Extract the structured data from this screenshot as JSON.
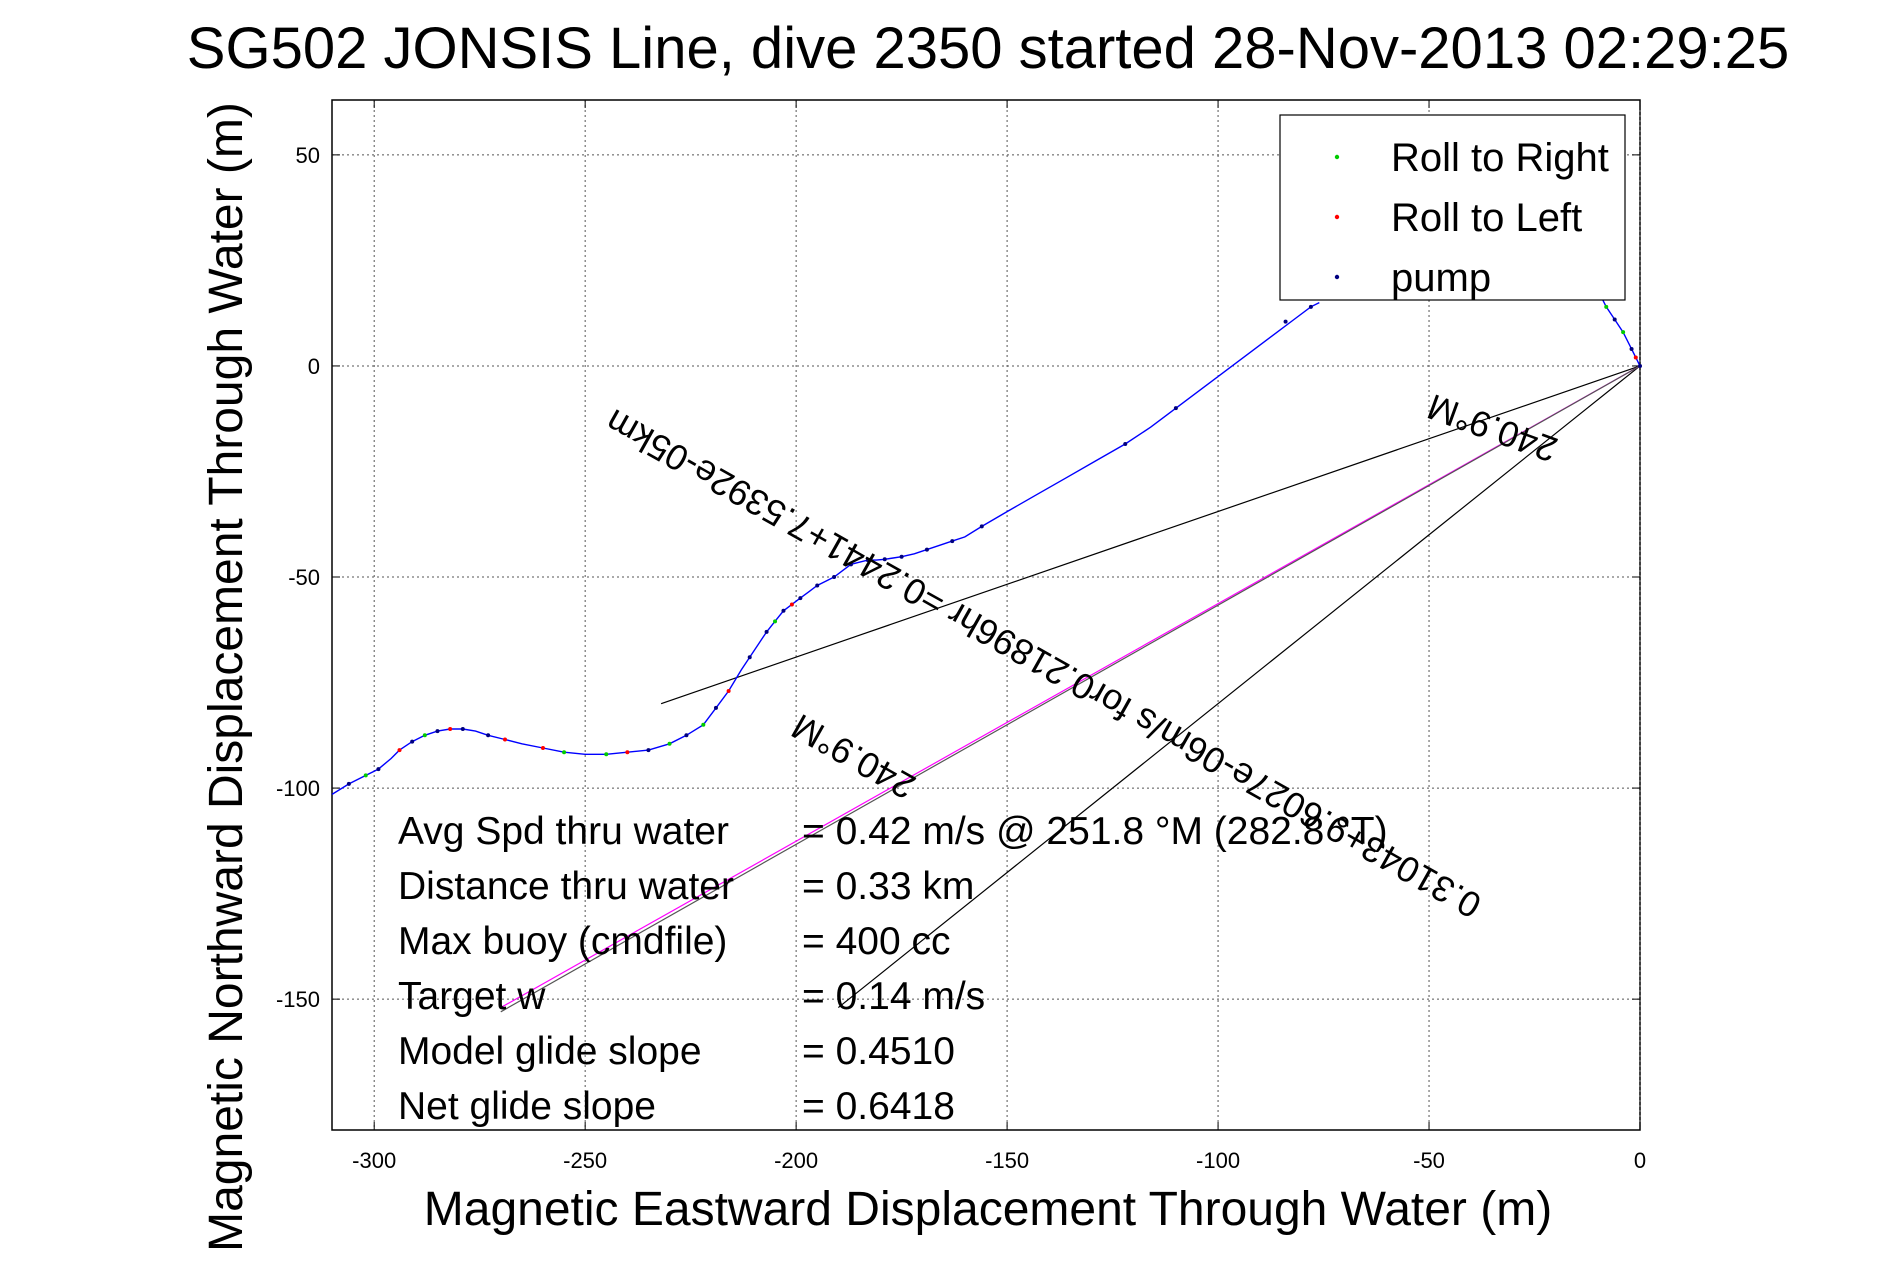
{
  "chart_data": {
    "type": "line",
    "title": "SG502 JONSIS Line, dive 2350 started 28-Nov-2013 02:29:25",
    "xlabel": "Magnetic Eastward Displacement Through Water (m)",
    "ylabel": "Magnetic Northward Displacement Through Water (m)",
    "xlim": [
      -310,
      0
    ],
    "ylim": [
      -181,
      63
    ],
    "xticks": [
      -300,
      -250,
      -200,
      -150,
      -100,
      -50,
      0
    ],
    "yticks": [
      50,
      0,
      -50,
      -100,
      -150
    ],
    "xtick_labels": [
      "-300",
      "-250",
      "-200",
      "-150",
      "-100",
      "-50",
      "0"
    ],
    "ytick_labels": [
      "50",
      "0",
      "-50",
      "-100",
      "-150"
    ],
    "grid": true,
    "legend_position": "top-right",
    "legend": [
      {
        "label": "Roll to Right",
        "color": "#00cc00"
      },
      {
        "label": "Roll to Left",
        "color": "#ff0000"
      },
      {
        "label": "pump",
        "color": "#000080"
      }
    ],
    "series": [
      {
        "color": "#0000ff",
        "x": [
          -310,
          -306,
          -302,
          -299,
          -296,
          -294,
          -291,
          -288,
          -285,
          -282,
          -279,
          -276,
          -273,
          -269,
          -265,
          -260,
          -255,
          -250,
          -245,
          -240,
          -235,
          -230,
          -226,
          -222,
          -219,
          -216,
          -213,
          -211,
          -209,
          -207,
          -205,
          -203,
          -201,
          -199,
          -197,
          -195,
          -193,
          -191,
          -189,
          -187,
          -185,
          -183,
          -181,
          -179,
          -177,
          -175,
          -172,
          -169,
          -166,
          -163,
          -160,
          -156,
          -150,
          -143,
          -136,
          -129,
          -122,
          -116,
          -110,
          -104,
          -98,
          -92,
          -86,
          -82,
          -78,
          -76
        ],
        "y": [
          -101.5,
          -99,
          -97,
          -95.5,
          -93,
          -91,
          -89,
          -87.5,
          -86.5,
          -86,
          -86,
          -86.5,
          -87.5,
          -88.5,
          -89.5,
          -90.5,
          -91.5,
          -92,
          -92,
          -91.5,
          -91,
          -89.5,
          -87.5,
          -85,
          -81,
          -77,
          -72,
          -69,
          -66,
          -63,
          -60.5,
          -58,
          -56.5,
          -55,
          -53.5,
          -52,
          -51,
          -50,
          -48.5,
          -47,
          -46.5,
          -46,
          -46,
          -45.8,
          -45.5,
          -45.2,
          -44.5,
          -43.5,
          -42.5,
          -41.5,
          -40.5,
          -38,
          -34.5,
          -30.5,
          -26.5,
          -22.5,
          -18.5,
          -14.5,
          -10,
          -5.5,
          -1,
          3.5,
          8,
          11,
          14,
          15
        ]
      },
      {
        "color": "#0000ff",
        "x": [
          -10,
          -8,
          -6,
          -4,
          -2,
          -1,
          0
        ],
        "y": [
          18,
          14,
          11,
          8,
          4,
          2,
          0
        ]
      }
    ],
    "pump_points": [
      [
        -306,
        -99
      ],
      [
        -299,
        -95.5
      ],
      [
        -291,
        -89
      ],
      [
        -285,
        -86.5
      ],
      [
        -279,
        -86
      ],
      [
        -273,
        -87.5
      ],
      [
        -235,
        -91
      ],
      [
        -226,
        -87.5
      ],
      [
        -219,
        -81
      ],
      [
        -211,
        -69
      ],
      [
        -207,
        -63
      ],
      [
        -203,
        -58
      ],
      [
        -199,
        -55
      ],
      [
        -195,
        -52
      ],
      [
        -191,
        -50
      ],
      [
        -187,
        -47
      ],
      [
        -183,
        -46
      ],
      [
        -179,
        -45.8
      ],
      [
        -175,
        -45.2
      ],
      [
        -169,
        -43.5
      ],
      [
        -163,
        -41.5
      ],
      [
        -156,
        -38
      ],
      [
        -122,
        -18.5
      ],
      [
        -110,
        -10
      ],
      [
        -84,
        10.5
      ],
      [
        -78,
        14
      ],
      [
        -6,
        11
      ],
      [
        -2,
        4
      ],
      [
        0,
        0
      ]
    ],
    "right_roll_points": [
      [
        -302,
        -97
      ],
      [
        -288,
        -87.5
      ],
      [
        -255,
        -91.5
      ],
      [
        -245,
        -92
      ],
      [
        -230,
        -89.5
      ],
      [
        -222,
        -85
      ],
      [
        -205,
        -60.5
      ],
      [
        -8,
        14
      ],
      [
        -4,
        8
      ]
    ],
    "left_roll_points": [
      [
        -294,
        -91
      ],
      [
        -282,
        -86
      ],
      [
        -269,
        -88.5
      ],
      [
        -260,
        -90.5
      ],
      [
        -240,
        -91.5
      ],
      [
        -216,
        -77
      ],
      [
        -201,
        -56.5
      ],
      [
        -1,
        2
      ]
    ],
    "reference_lines": [
      {
        "color": "#000000",
        "x": [
          0,
          -232
        ],
        "y": [
          0,
          -80
        ]
      },
      {
        "color": "#000000",
        "x": [
          0,
          -190
        ],
        "y": [
          0,
          -152
        ]
      },
      {
        "color": "#ff00ff",
        "x": [
          0,
          -270
        ],
        "y": [
          0,
          -152
        ]
      },
      {
        "color": "#555555",
        "x": [
          0,
          -270
        ],
        "y": [
          0,
          -153
        ]
      }
    ],
    "line_labels": [
      {
        "text": "240.9°M",
        "x": -34,
        "y": -12,
        "angle": 200
      },
      {
        "text": "0.31043+9.6027e-06m/s for0.21896hr =0.2441+7.5392e-05km",
        "x": -140,
        "y": -68,
        "angle": 209.4
      },
      {
        "text": "240.9°M",
        "x": -185,
        "y": -90,
        "angle": 209.4
      }
    ],
    "stats": [
      {
        "label": "Avg Spd thru water",
        "value": "=  0.42 m/s @ 251.8 °M (282.8 °T)"
      },
      {
        "label": "Distance thru water",
        "value": "=  0.33 km"
      },
      {
        "label": "Max buoy (cmdfile)",
        "value": "= 400 cc"
      },
      {
        "label": "Target w",
        "value": "= 0.14 m/s"
      },
      {
        "label": "Model glide slope",
        "value": "= 0.4510"
      },
      {
        "label": "Net glide slope",
        "value": "= 0.6418"
      }
    ]
  }
}
